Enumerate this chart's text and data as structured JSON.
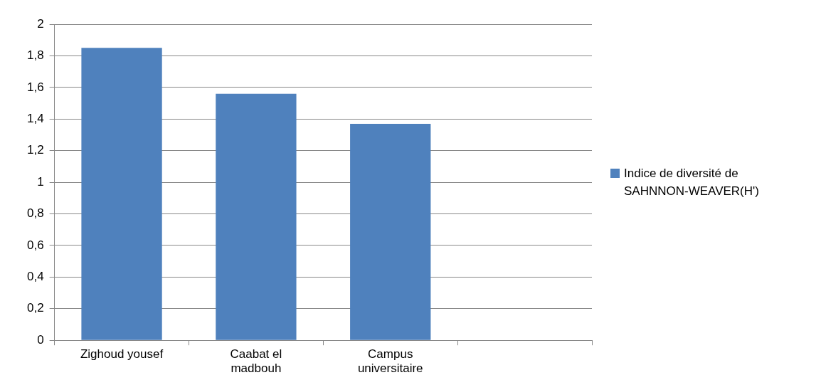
{
  "chart_data": {
    "type": "bar",
    "categories": [
      "Zighoud yousef",
      "Caabat el madbouh",
      "Campus universitaire",
      null
    ],
    "series": [
      {
        "name": "Indice de diversité de SAHNNON-WEAVER(H')",
        "color": "#4f81bd",
        "values": [
          1.85,
          1.56,
          1.37,
          null
        ]
      }
    ],
    "ylim": [
      0,
      2
    ],
    "yticks": [
      0,
      {
        "value": 0.2,
        "label": "0,2"
      },
      {
        "value": 0.4,
        "label": "0,4"
      },
      {
        "value": 0.6,
        "label": "0,6"
      },
      {
        "value": 0.8,
        "label": "0,8"
      },
      1,
      {
        "value": 1.2,
        "label": "1,2"
      },
      {
        "value": 1.4,
        "label": "1,4"
      },
      {
        "value": 1.6,
        "label": "1,6"
      },
      {
        "value": 1.8,
        "label": "1,8"
      },
      2
    ],
    "grid": "y",
    "legend": "right"
  }
}
